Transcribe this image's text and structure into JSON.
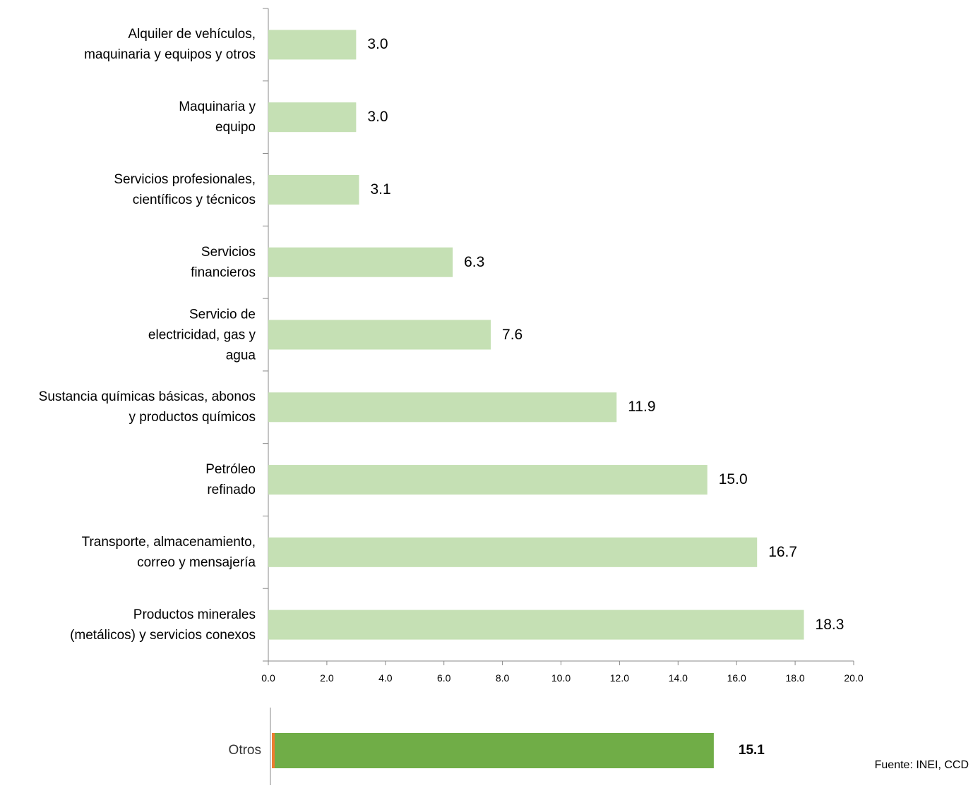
{
  "chart_data": [
    {
      "type": "bar",
      "orientation": "horizontal",
      "categories": [
        "Alquiler de vehículos,\nmaquinaria y equipos y otros",
        "Maquinaria y\nequipo",
        "Servicios profesionales,\ncientíficos y técnicos",
        "Servicios\nfinancieros",
        "Servicio de\nelectricidad, gas y\nagua",
        "Sustancia químicas básicas, abonos\ny productos químicos",
        "Petróleo\nrefinado",
        "Transporte, almacenamiento,\ncorreo y mensajería",
        "Productos minerales\n(metálicos) y servicios conexos"
      ],
      "values": [
        3.0,
        3.0,
        3.1,
        6.3,
        7.6,
        11.9,
        15.0,
        16.7,
        18.3
      ],
      "value_labels": [
        "3.0",
        "3.0",
        "3.1",
        "6.3",
        "7.6",
        "11.9",
        "15.0",
        "16.7",
        "18.3"
      ],
      "color": "#c5e0b4",
      "xlim": [
        0,
        20
      ],
      "xticks": [
        {
          "value": 0,
          "label": "0.0"
        },
        {
          "value": 2,
          "label": "2.0"
        },
        {
          "value": 4,
          "label": "4.0"
        },
        {
          "value": 6,
          "label": "6.0"
        },
        {
          "value": 8,
          "label": "8.0"
        },
        {
          "value": 10,
          "label": "10.0"
        },
        {
          "value": 12,
          "label": "12.0"
        },
        {
          "value": 14,
          "label": "14.0"
        },
        {
          "value": 16,
          "label": "16.0"
        },
        {
          "value": 18,
          "label": "18.0"
        },
        {
          "value": 20,
          "label": "20.0"
        }
      ]
    },
    {
      "type": "bar",
      "orientation": "horizontal",
      "categories": [
        "Otros"
      ],
      "values": [
        15.1
      ],
      "color": "#70ad47"
    }
  ],
  "source": "Fuente: INEI, CCD"
}
